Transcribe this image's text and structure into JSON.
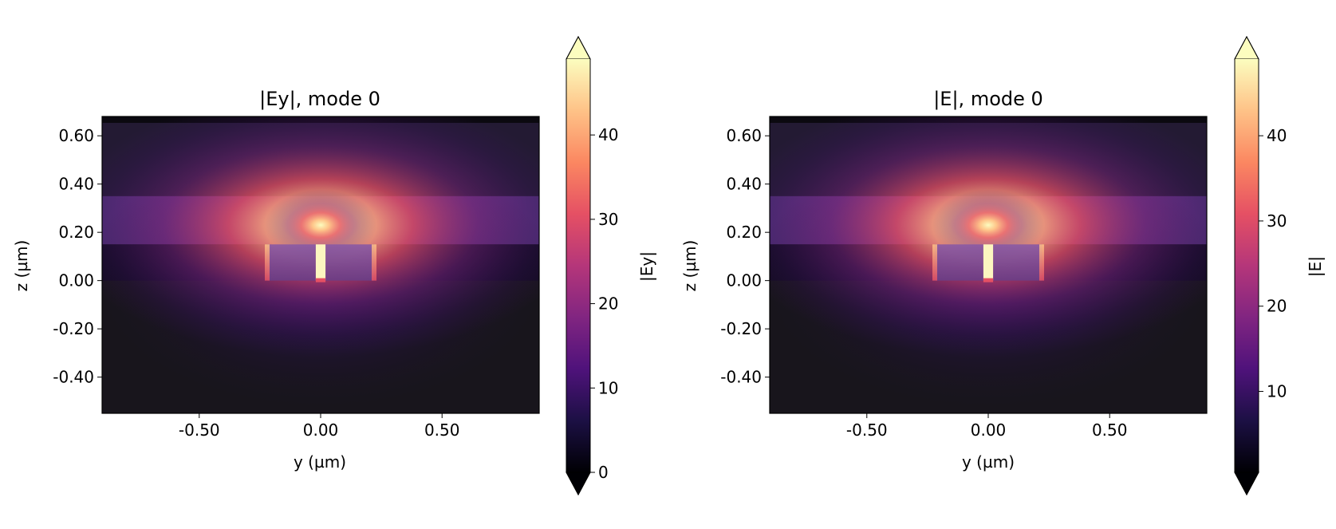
{
  "chart_data": [
    {
      "type": "heatmap",
      "title": "|Ey|, mode 0",
      "xlabel": "y (µm)",
      "ylabel": "z (µm)",
      "xlim": [
        -0.9,
        0.9
      ],
      "ylim": [
        -0.55,
        0.68
      ],
      "xticks": [
        -0.5,
        0.0,
        0.5
      ],
      "xtick_labels": [
        "-0.50",
        "0.00",
        "0.50"
      ],
      "yticks": [
        0.6,
        0.4,
        0.2,
        0.0,
        -0.2,
        -0.4
      ],
      "ytick_labels": [
        "0.60",
        "0.40",
        "0.20",
        "0.00",
        "-0.20",
        "-0.40"
      ],
      "colormap": "magma",
      "colorbar": {
        "label": "|Ey|",
        "range": [
          0,
          49
        ],
        "ticks": [
          0,
          10,
          20,
          30,
          40
        ],
        "tick_labels": [
          "0",
          "10",
          "20",
          "30",
          "40"
        ],
        "extend": "both"
      },
      "structure": {
        "waveguide_rails": [
          [
            -0.22,
            -0.02
          ],
          [
            0.02,
            0.22
          ]
        ],
        "slot_gap": [
          -0.02,
          0.02
        ],
        "rail_height": [
          0.0,
          0.15
        ],
        "cladding_band": [
          0.15,
          0.35
        ],
        "peak_field_location": [
          0.0,
          0.23
        ]
      }
    },
    {
      "type": "heatmap",
      "title": "|E|, mode 0",
      "xlabel": "y (µm)",
      "ylabel": "z (µm)",
      "xlim": [
        -0.9,
        0.9
      ],
      "ylim": [
        -0.55,
        0.68
      ],
      "xticks": [
        -0.5,
        0.0,
        0.5
      ],
      "xtick_labels": [
        "-0.50",
        "0.00",
        "0.50"
      ],
      "yticks": [
        0.6,
        0.4,
        0.2,
        0.0,
        -0.2,
        -0.4
      ],
      "ytick_labels": [
        "0.60",
        "0.40",
        "0.20",
        "0.00",
        "-0.20",
        "-0.40"
      ],
      "colormap": "magma",
      "colorbar": {
        "label": "|E|",
        "range": [
          0.5,
          49
        ],
        "ticks": [
          10,
          20,
          30,
          40
        ],
        "tick_labels": [
          "10",
          "20",
          "30",
          "40"
        ],
        "extend": "both"
      },
      "structure": {
        "waveguide_rails": [
          [
            -0.22,
            -0.02
          ],
          [
            0.02,
            0.22
          ]
        ],
        "slot_gap": [
          -0.02,
          0.02
        ],
        "rail_height": [
          0.0,
          0.15
        ],
        "cladding_band": [
          0.15,
          0.35
        ],
        "peak_field_location": [
          0.0,
          0.23
        ]
      }
    }
  ]
}
